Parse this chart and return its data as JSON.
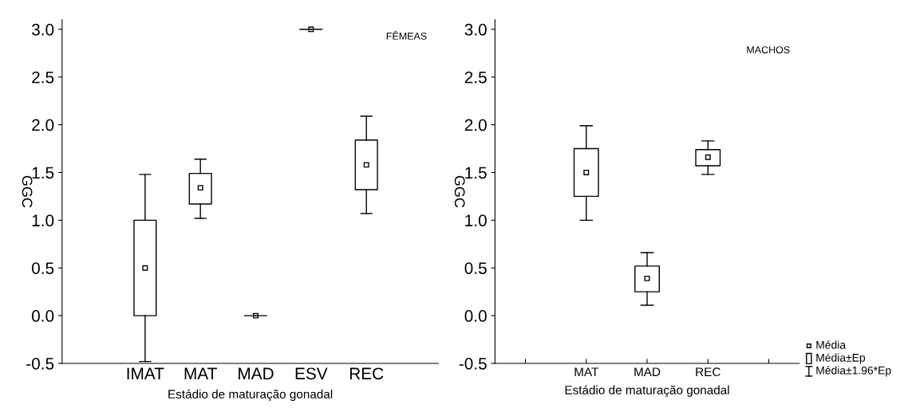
{
  "chart_data": [
    {
      "type": "box",
      "title": "FÊMEAS",
      "xlabel": "Estádio de maturação gonadal",
      "ylabel": "GGC",
      "categories": [
        "IMAT",
        "MAT",
        "MAD",
        "ESV",
        "REC"
      ],
      "boxes": [
        {
          "low": -0.48,
          "q1": 0.0,
          "median": 0.5,
          "q3": 1.0,
          "high": 1.48
        },
        {
          "low": 1.02,
          "q1": 1.17,
          "median": 1.34,
          "q3": 1.49,
          "high": 1.64
        },
        {
          "low": 0.0,
          "q1": 0.0,
          "median": 0.0,
          "q3": 0.0,
          "high": 0.0,
          "mean": 0.0
        },
        {
          "low": 3.0,
          "q1": 3.0,
          "median": 3.0,
          "q3": 3.0,
          "high": 3.0,
          "mean": 3.0
        },
        {
          "low": 1.07,
          "q1": 1.32,
          "median": 1.58,
          "q3": 1.84,
          "high": 2.09
        }
      ],
      "color": "#000000",
      "marker": "square",
      "ylim": [
        -0.5,
        3.1
      ],
      "yticks": [
        -0.5,
        {
          "value": 0,
          "label": "0.0"
        },
        0.5,
        {
          "value": 1,
          "label": "1.0"
        },
        1.5,
        {
          "value": 2,
          "label": "2.0"
        },
        2.5,
        {
          "value": 3,
          "label": "3.0"
        }
      ],
      "grid": false
    },
    {
      "type": "box",
      "title": "MACHOS",
      "xlabel": "Estádio de maturação gonadal",
      "ylabel": "GGC",
      "categories": [
        null,
        "MAT",
        "MAD",
        "REC",
        null
      ],
      "boxes": [
        null,
        {
          "low": 1.0,
          "q1": 1.25,
          "median": 1.5,
          "q3": 1.75,
          "high": 1.99
        },
        {
          "low": 0.11,
          "q1": 0.25,
          "median": 0.39,
          "q3": 0.52,
          "high": 0.66
        },
        {
          "low": 1.48,
          "q1": 1.57,
          "median": 1.66,
          "q3": 1.74,
          "high": 1.83
        },
        null
      ],
      "color": "#000000",
      "marker": "square",
      "ylim": [
        -0.5,
        3.1
      ],
      "yticks": [
        -0.5,
        {
          "value": 0,
          "label": "0.0"
        },
        0.5,
        {
          "value": 1,
          "label": "1.0"
        },
        1.5,
        {
          "value": 2,
          "label": "2.0"
        },
        2.5,
        {
          "value": 3,
          "label": "3.0"
        }
      ],
      "grid": false,
      "annotations": [
        "Média",
        "Média±Ep",
        "Média±1.96*Ep"
      ]
    }
  ]
}
